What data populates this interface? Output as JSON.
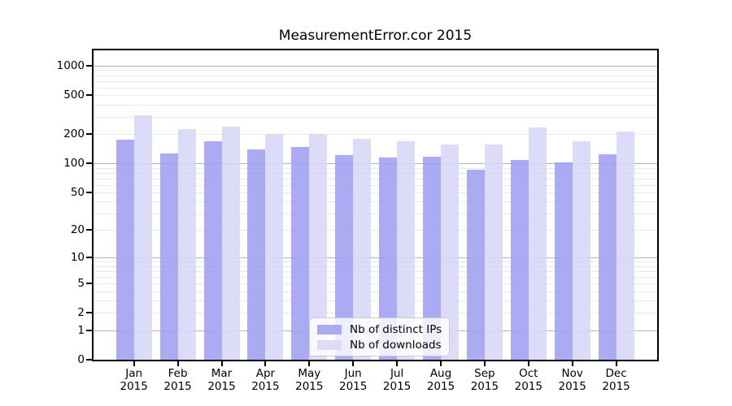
{
  "chart_data": {
    "type": "bar",
    "title": "MeasurementError.cor 2015",
    "scale": "log1p",
    "ylim": [
      0,
      1434
    ],
    "y_ticks": [
      1000,
      500,
      200,
      100,
      50,
      20,
      10,
      5,
      2,
      1,
      0
    ],
    "categories": [
      "Jan",
      "Feb",
      "Mar",
      "Apr",
      "May",
      "Jun",
      "Jul",
      "Aug",
      "Sep",
      "Oct",
      "Nov",
      "Dec"
    ],
    "year": "2015",
    "series": [
      {
        "name": "Nb of distinct IPs",
        "color": "#9e9ef1",
        "legend_color": "#aaaaf3",
        "values": [
          175,
          126,
          167,
          140,
          148,
          121,
          114,
          117,
          86,
          108,
          103,
          123
        ]
      },
      {
        "name": "Nb of downloads",
        "color": "#d7d7f7",
        "legend_color": "#dcdcf8",
        "values": [
          310,
          223,
          240,
          200,
          199,
          177,
          167,
          156,
          155,
          233,
          170,
          214
        ]
      }
    ],
    "legend_position": "inside-bottom-center",
    "grid": true,
    "colors": {
      "grid_major": "#b2b2b2",
      "grid_minor": "#e9e9e9",
      "axis": "#000000",
      "plot_background": "#ffffff"
    }
  }
}
